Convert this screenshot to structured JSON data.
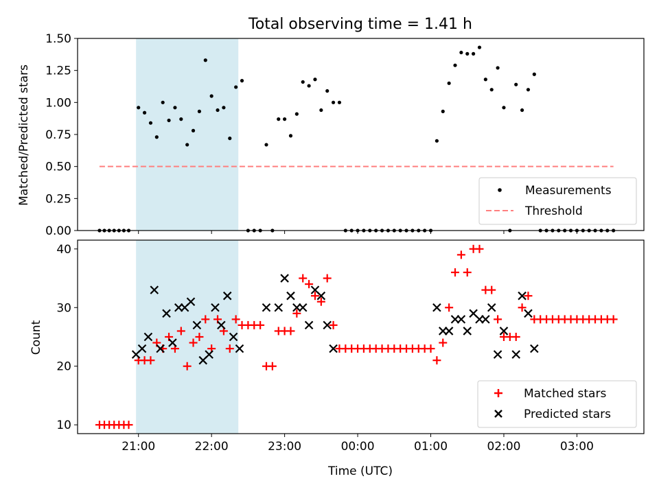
{
  "title": "Total observing time = 1.41 h",
  "colors": {
    "measurement": "#000000",
    "threshold": "#ff7f7f",
    "matched": "#ff0000",
    "predicted": "#000000",
    "shaded": "#add8e6"
  },
  "chart_data": [
    {
      "type": "scatter",
      "ylabel": "Matched/Predicted stars",
      "ylim": [
        0,
        1.5
      ],
      "xlim": [
        "20:10",
        "03:55"
      ],
      "y_ticks": [
        "0.00",
        "0.25",
        "0.50",
        "0.75",
        "1.00",
        "1.25",
        "1.50"
      ],
      "shaded_span": [
        "20:58",
        "22:22"
      ],
      "threshold": {
        "value": 0.5,
        "x_range": [
          "20:28",
          "03:30"
        ]
      },
      "legend_position": "lower right",
      "legend": {
        "measurements": "Measurements",
        "threshold": "Threshold"
      },
      "measurements": [
        [
          "20:28",
          0
        ],
        [
          "20:32",
          0
        ],
        [
          "20:36",
          0
        ],
        [
          "20:40",
          0
        ],
        [
          "20:44",
          0
        ],
        [
          "20:48",
          0
        ],
        [
          "20:52",
          0
        ],
        [
          "21:00",
          0.96
        ],
        [
          "21:05",
          0.92
        ],
        [
          "21:10",
          0.84
        ],
        [
          "21:15",
          0.73
        ],
        [
          "21:20",
          1.0
        ],
        [
          "21:25",
          0.86
        ],
        [
          "21:30",
          0.96
        ],
        [
          "21:35",
          0.87
        ],
        [
          "21:40",
          0.67
        ],
        [
          "21:45",
          0.78
        ],
        [
          "21:50",
          0.93
        ],
        [
          "21:55",
          1.33
        ],
        [
          "22:00",
          1.05
        ],
        [
          "22:05",
          0.94
        ],
        [
          "22:10",
          0.96
        ],
        [
          "22:15",
          0.72
        ],
        [
          "22:20",
          1.12
        ],
        [
          "22:25",
          1.17
        ],
        [
          "22:30",
          0
        ],
        [
          "22:35",
          0
        ],
        [
          "22:40",
          0
        ],
        [
          "22:45",
          0.67
        ],
        [
          "22:50",
          0
        ],
        [
          "22:55",
          0.87
        ],
        [
          "23:00",
          0.87
        ],
        [
          "23:05",
          0.74
        ],
        [
          "23:10",
          0.91
        ],
        [
          "23:15",
          1.16
        ],
        [
          "23:20",
          1.13
        ],
        [
          "23:25",
          1.18
        ],
        [
          "23:30",
          0.94
        ],
        [
          "23:35",
          1.09
        ],
        [
          "23:40",
          1.0
        ],
        [
          "23:45",
          1.0
        ],
        [
          "23:50",
          0
        ],
        [
          "23:55",
          0
        ],
        [
          "00:00",
          0
        ],
        [
          "00:05",
          0
        ],
        [
          "00:10",
          0
        ],
        [
          "00:15",
          0
        ],
        [
          "00:20",
          0
        ],
        [
          "00:25",
          0
        ],
        [
          "00:30",
          0
        ],
        [
          "00:35",
          0
        ],
        [
          "00:40",
          0
        ],
        [
          "00:45",
          0
        ],
        [
          "00:50",
          0
        ],
        [
          "00:55",
          0
        ],
        [
          "01:00",
          0
        ],
        [
          "01:05",
          0.7
        ],
        [
          "01:10",
          0.93
        ],
        [
          "01:15",
          1.15
        ],
        [
          "01:20",
          1.29
        ],
        [
          "01:25",
          1.39
        ],
        [
          "01:30",
          1.38
        ],
        [
          "01:35",
          1.38
        ],
        [
          "01:40",
          1.43
        ],
        [
          "01:45",
          1.18
        ],
        [
          "01:50",
          1.1
        ],
        [
          "01:55",
          1.27
        ],
        [
          "02:00",
          0.96
        ],
        [
          "02:05",
          0
        ],
        [
          "02:10",
          1.14
        ],
        [
          "02:15",
          0.94
        ],
        [
          "02:20",
          1.1
        ],
        [
          "02:25",
          1.22
        ],
        [
          "02:30",
          0
        ],
        [
          "02:35",
          0
        ],
        [
          "02:40",
          0
        ],
        [
          "02:45",
          0
        ],
        [
          "02:50",
          0
        ],
        [
          "02:55",
          0
        ],
        [
          "03:00",
          0
        ],
        [
          "03:05",
          0
        ],
        [
          "03:10",
          0
        ],
        [
          "03:15",
          0
        ],
        [
          "03:20",
          0
        ],
        [
          "03:25",
          0
        ],
        [
          "03:30",
          0
        ]
      ]
    },
    {
      "type": "scatter",
      "xlabel": "Time (UTC)",
      "ylabel": "Count",
      "ylim": [
        8.5,
        41.5
      ],
      "xlim": [
        "20:10",
        "03:55"
      ],
      "x_ticks": [
        "21:00",
        "22:00",
        "23:00",
        "00:00",
        "01:00",
        "02:00",
        "03:00"
      ],
      "y_ticks": [
        10,
        20,
        30,
        40
      ],
      "shaded_span": [
        "20:58",
        "22:22"
      ],
      "legend_position": "lower right",
      "series": [
        {
          "name": "Matched stars",
          "marker": "plus",
          "points": [
            [
              "20:28",
              10
            ],
            [
              "20:32",
              10
            ],
            [
              "20:36",
              10
            ],
            [
              "20:40",
              10
            ],
            [
              "20:44",
              10
            ],
            [
              "20:48",
              10
            ],
            [
              "20:52",
              10
            ],
            [
              "21:00",
              21
            ],
            [
              "21:05",
              21
            ],
            [
              "21:10",
              21
            ],
            [
              "21:15",
              24
            ],
            [
              "21:20",
              23
            ],
            [
              "21:25",
              25
            ],
            [
              "21:30",
              23
            ],
            [
              "21:35",
              26
            ],
            [
              "21:40",
              20
            ],
            [
              "21:45",
              24
            ],
            [
              "21:50",
              25
            ],
            [
              "21:55",
              28
            ],
            [
              "22:00",
              23
            ],
            [
              "22:05",
              28
            ],
            [
              "22:10",
              26
            ],
            [
              "22:15",
              23
            ],
            [
              "22:20",
              28
            ],
            [
              "22:25",
              27
            ],
            [
              "22:30",
              27
            ],
            [
              "22:35",
              27
            ],
            [
              "22:40",
              27
            ],
            [
              "22:45",
              20
            ],
            [
              "22:50",
              20
            ],
            [
              "22:55",
              26
            ],
            [
              "23:00",
              26
            ],
            [
              "23:05",
              26
            ],
            [
              "23:10",
              29
            ],
            [
              "23:15",
              35
            ],
            [
              "23:20",
              34
            ],
            [
              "23:25",
              32
            ],
            [
              "23:30",
              31
            ],
            [
              "23:35",
              35
            ],
            [
              "23:40",
              27
            ],
            [
              "23:45",
              23
            ],
            [
              "23:50",
              23
            ],
            [
              "23:55",
              23
            ],
            [
              "00:00",
              23
            ],
            [
              "00:05",
              23
            ],
            [
              "00:10",
              23
            ],
            [
              "00:15",
              23
            ],
            [
              "00:20",
              23
            ],
            [
              "00:25",
              23
            ],
            [
              "00:30",
              23
            ],
            [
              "00:35",
              23
            ],
            [
              "00:40",
              23
            ],
            [
              "00:45",
              23
            ],
            [
              "00:50",
              23
            ],
            [
              "00:55",
              23
            ],
            [
              "01:00",
              23
            ],
            [
              "01:05",
              21
            ],
            [
              "01:10",
              24
            ],
            [
              "01:15",
              30
            ],
            [
              "01:20",
              36
            ],
            [
              "01:25",
              39
            ],
            [
              "01:30",
              36
            ],
            [
              "01:35",
              40
            ],
            [
              "01:40",
              40
            ],
            [
              "01:45",
              33
            ],
            [
              "01:50",
              33
            ],
            [
              "01:55",
              28
            ],
            [
              "02:00",
              25
            ],
            [
              "02:05",
              25
            ],
            [
              "02:10",
              25
            ],
            [
              "02:15",
              30
            ],
            [
              "02:20",
              32
            ],
            [
              "02:25",
              28
            ],
            [
              "02:30",
              28
            ],
            [
              "02:35",
              28
            ],
            [
              "02:40",
              28
            ],
            [
              "02:45",
              28
            ],
            [
              "02:50",
              28
            ],
            [
              "02:55",
              28
            ],
            [
              "03:00",
              28
            ],
            [
              "03:05",
              28
            ],
            [
              "03:10",
              28
            ],
            [
              "03:15",
              28
            ],
            [
              "03:20",
              28
            ],
            [
              "03:25",
              28
            ],
            [
              "03:30",
              28
            ]
          ]
        },
        {
          "name": "Predicted stars",
          "marker": "x",
          "points": [
            [
              "20:58",
              22
            ],
            [
              "21:03",
              23
            ],
            [
              "21:08",
              25
            ],
            [
              "21:13",
              33
            ],
            [
              "21:18",
              23
            ],
            [
              "21:23",
              29
            ],
            [
              "21:28",
              24
            ],
            [
              "21:33",
              30
            ],
            [
              "21:38",
              30
            ],
            [
              "21:43",
              31
            ],
            [
              "21:48",
              27
            ],
            [
              "21:53",
              21
            ],
            [
              "21:58",
              22
            ],
            [
              "22:03",
              30
            ],
            [
              "22:08",
              27
            ],
            [
              "22:13",
              32
            ],
            [
              "22:18",
              25
            ],
            [
              "22:23",
              23
            ],
            [
              "22:45",
              30
            ],
            [
              "22:55",
              30
            ],
            [
              "23:00",
              35
            ],
            [
              "23:05",
              32
            ],
            [
              "23:10",
              30
            ],
            [
              "23:15",
              30
            ],
            [
              "23:20",
              27
            ],
            [
              "23:25",
              33
            ],
            [
              "23:30",
              32
            ],
            [
              "23:35",
              27
            ],
            [
              "23:40",
              23
            ],
            [
              "01:05",
              30
            ],
            [
              "01:10",
              26
            ],
            [
              "01:15",
              26
            ],
            [
              "01:20",
              28
            ],
            [
              "01:25",
              28
            ],
            [
              "01:30",
              26
            ],
            [
              "01:35",
              29
            ],
            [
              "01:40",
              28
            ],
            [
              "01:45",
              28
            ],
            [
              "01:50",
              30
            ],
            [
              "01:55",
              22
            ],
            [
              "02:00",
              26
            ],
            [
              "02:10",
              22
            ],
            [
              "02:15",
              32
            ],
            [
              "02:20",
              29
            ],
            [
              "02:25",
              23
            ]
          ]
        }
      ]
    }
  ]
}
